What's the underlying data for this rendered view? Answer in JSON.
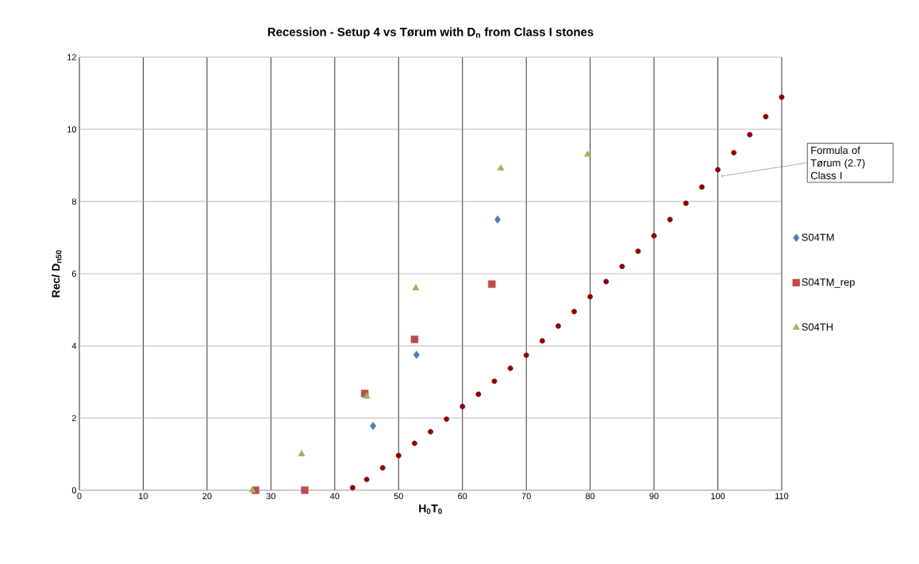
{
  "chart_data": {
    "type": "scatter",
    "title": "Recession - Setup 4 vs Tørum with D$_{n}$ from Class I stones",
    "xlabel": "H$_{0}$T$_{0}$",
    "ylabel": "Rec/ D$_{n50}$",
    "xlim": [
      0,
      110
    ],
    "ylim": [
      0,
      12
    ],
    "xticks": [
      0,
      10,
      20,
      30,
      40,
      50,
      60,
      70,
      80,
      90,
      100,
      110
    ],
    "yticks": [
      0,
      2,
      4,
      6,
      8,
      10,
      12
    ],
    "grid": true,
    "legend": "right",
    "annotations": [
      {
        "text": "Formula of Tørum (2.7) Class I",
        "x": 100.5,
        "y": 8.7
      }
    ],
    "series": [
      {
        "name": "S04TM",
        "color": "#4a7ebb",
        "marker": "diamond",
        "x": [
          46.0,
          52.8,
          65.5
        ],
        "values": [
          1.78,
          3.75,
          7.5
        ]
      },
      {
        "name": "S04TM_rep",
        "color": "#be4b48",
        "marker": "square",
        "x": [
          27.6,
          35.3,
          44.7,
          52.5,
          64.6
        ],
        "values": [
          0,
          0,
          2.68,
          4.18,
          5.71
        ]
      },
      {
        "name": "S04TH",
        "color": "#98b954",
        "marker": "triangle",
        "x": [
          27.1,
          34.8,
          45.0,
          52.7,
          66.0,
          79.6
        ],
        "values": [
          0,
          1.0,
          2.6,
          5.6,
          8.92,
          9.3
        ]
      },
      {
        "color": "#8b0000",
        "marker": "circle",
        "x": [
          42.8,
          45,
          47.5,
          50,
          52.5,
          55,
          57.5,
          60,
          62.5,
          65,
          67.5,
          70,
          72.5,
          75,
          77.5,
          80,
          82.5,
          85,
          87.5,
          90,
          92.5,
          95,
          97.5,
          100,
          102.5,
          105,
          107.5,
          110
        ],
        "values": [
          0.07,
          0.3,
          0.62,
          0.96,
          1.3,
          1.62,
          1.97,
          2.32,
          2.66,
          3.02,
          3.38,
          3.74,
          4.14,
          4.55,
          4.95,
          5.36,
          5.78,
          6.2,
          6.62,
          7.05,
          7.5,
          7.95,
          8.4,
          8.88,
          9.35,
          9.85,
          10.35,
          10.89
        ]
      }
    ]
  }
}
